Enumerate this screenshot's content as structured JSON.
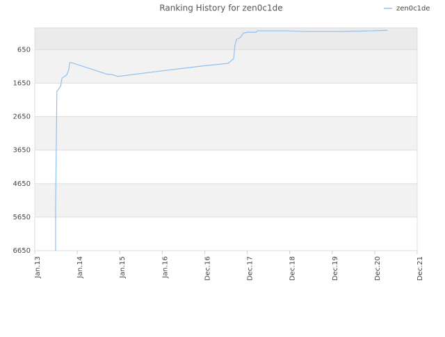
{
  "chart_data": {
    "type": "line",
    "title": "Ranking History for zen0c1de",
    "x": [
      0.49,
      0.49,
      0.51,
      0.52,
      0.61,
      0.64,
      0.7,
      0.75,
      0.8,
      0.82,
      0.87,
      1.72,
      1.8,
      1.96,
      2.95,
      3.93,
      4.55,
      4.68,
      4.71,
      4.75,
      4.83,
      4.91,
      5.0,
      5.21,
      5.24,
      5.89,
      6.38,
      7.2,
      7.94,
      8.3
    ],
    "series": [
      {
        "name": "zen0c1de",
        "color": "#90c0f0",
        "values": [
          6650,
          5400,
          3150,
          1900,
          1740,
          1500,
          1450,
          1410,
          1250,
          1040,
          1040,
          1390,
          1390,
          1450,
          1290,
          1140,
          1060,
          920,
          530,
          340,
          300,
          160,
          130,
          130,
          90,
          90,
          110,
          110,
          90,
          70
        ]
      }
    ],
    "xlim": [
      0,
      9
    ],
    "xticks": [
      {
        "value": 0,
        "label": "Jan.13"
      },
      {
        "value": 1,
        "label": "Jan.14"
      },
      {
        "value": 2,
        "label": "Jan.15"
      },
      {
        "value": 3,
        "label": "Jan.16"
      },
      {
        "value": 4,
        "label": "Dec.16"
      },
      {
        "value": 5,
        "label": "Dec.17"
      },
      {
        "value": 6,
        "label": "Dec.18"
      },
      {
        "value": 7,
        "label": "Dec.19"
      },
      {
        "value": 8,
        "label": "Dec.20"
      },
      {
        "value": 9,
        "label": "Dec.21"
      }
    ],
    "ylim": [
      6650,
      0
    ],
    "yticks": [
      650,
      1650,
      2650,
      3650,
      4650,
      5650,
      6650
    ],
    "grid": true,
    "legend": "top-right"
  }
}
